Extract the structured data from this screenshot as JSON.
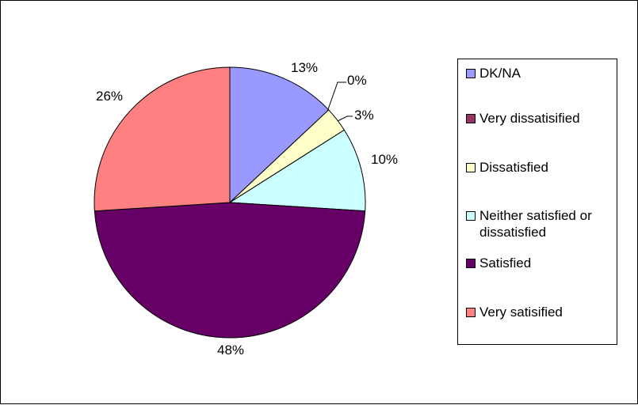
{
  "chart_data": {
    "type": "pie",
    "title": "",
    "slices": [
      {
        "label": "DK/NA",
        "value": 13,
        "color": "#9999FF",
        "pct_label": "13%"
      },
      {
        "label": "Very dissatisified",
        "value": 0,
        "color": "#993366",
        "pct_label": "0%"
      },
      {
        "label": "Dissatisfied",
        "value": 3,
        "color": "#FFFFCC",
        "pct_label": "3%"
      },
      {
        "label": "Neither satisfied or dissatisfied",
        "value": 10,
        "color": "#CCFFFF",
        "pct_label": "10%"
      },
      {
        "label": "Satisfied",
        "value": 48,
        "color": "#660066",
        "pct_label": "48%"
      },
      {
        "label": "Very satisified",
        "value": 26,
        "color": "#FF8080",
        "pct_label": "26%"
      }
    ],
    "legend_position": "right"
  },
  "legend": {
    "items": [
      {
        "text": "DK/NA",
        "color": "#9999FF"
      },
      {
        "text": "Very dissatisified",
        "color": "#993366"
      },
      {
        "text": "Dissatisfied",
        "color": "#FFFFCC"
      },
      {
        "text": "Neither satisfied or dissatisfied",
        "color": "#CCFFFF"
      },
      {
        "text": "Satisfied",
        "color": "#660066"
      },
      {
        "text": "Very satisified",
        "color": "#FF8080"
      }
    ]
  }
}
